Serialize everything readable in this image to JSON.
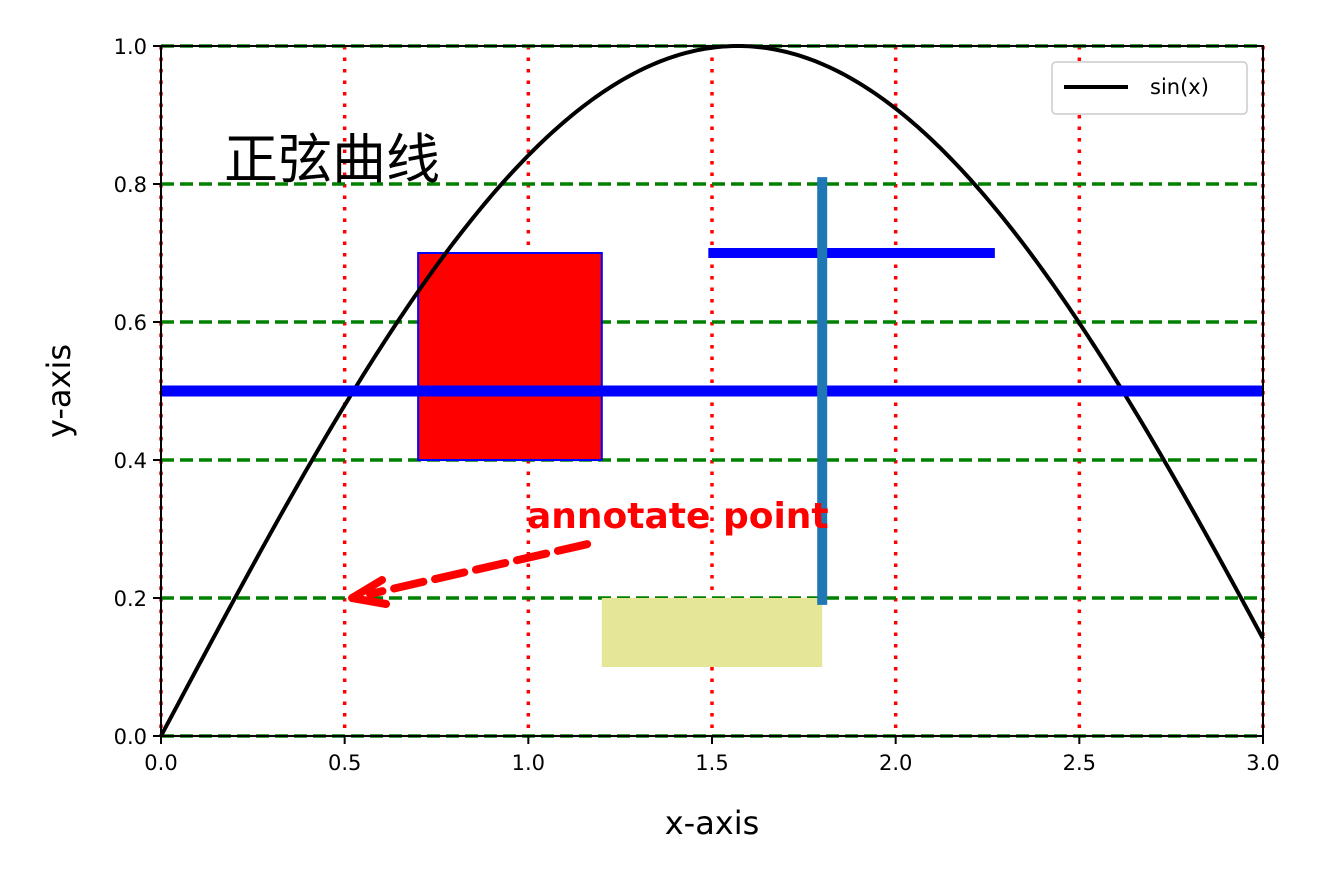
{
  "chart_data": {
    "type": "line",
    "title": "",
    "xlabel": "x-axis",
    "ylabel": "y-axis",
    "xlim": [
      0.0,
      3.0
    ],
    "ylim": [
      0.0,
      1.0
    ],
    "xticks": [
      0.0,
      0.5,
      1.0,
      1.5,
      2.0,
      2.5,
      3.0
    ],
    "yticks": [
      0.0,
      0.2,
      0.4,
      0.6,
      0.8,
      1.0
    ],
    "xtick_labels": [
      "0.0",
      "0.5",
      "1.0",
      "1.5",
      "2.0",
      "2.5",
      "3.0"
    ],
    "ytick_labels": [
      "0.0",
      "0.2",
      "0.4",
      "0.6",
      "0.8",
      "1.0"
    ],
    "series": [
      {
        "name": "sin(x)",
        "function": "sin(x)",
        "x_range": [
          0.0,
          3.0
        ],
        "color": "#000000"
      }
    ],
    "legend": {
      "placement": "top-right",
      "entries": [
        "sin(x)"
      ]
    },
    "grid": {
      "vertical": {
        "style": "dotted",
        "color": "#ff0000",
        "at": [
          0.0,
          0.5,
          1.0,
          1.5,
          2.0,
          2.5,
          3.0
        ]
      },
      "horizontal": {
        "style": "dashed",
        "color": "#008000",
        "at": [
          0.0,
          0.2,
          0.4,
          0.6,
          0.8,
          1.0
        ]
      }
    },
    "text_label": {
      "text": "正弦曲线",
      "x": 0.17,
      "y": 0.8
    },
    "annotation": {
      "text": "annotate point",
      "xy": [
        0.52,
        0.2
      ],
      "text_xy": [
        1.0,
        0.3
      ],
      "color": "#ff0000"
    },
    "hlines": [
      {
        "y": 0.5,
        "xmin": 0.0,
        "xmax": 3.0,
        "color": "#0000ff"
      },
      {
        "y": 0.7,
        "xmin": 1.49,
        "xmax": 2.27,
        "color": "#0000ff"
      }
    ],
    "vlines": [
      {
        "x": 1.8,
        "ymin": 0.19,
        "ymax": 0.81,
        "color": "#1f77b4"
      }
    ],
    "rectangles": [
      {
        "x0": 0.7,
        "x1": 1.2,
        "y0": 0.4,
        "y1": 0.7,
        "fill": "#ff0000",
        "edge": "#0000ff"
      }
    ],
    "spans": [
      {
        "x0": 1.2,
        "x1": 1.8,
        "y0": 0.1,
        "y1": 0.2,
        "fill": "#e6e699"
      }
    ]
  }
}
